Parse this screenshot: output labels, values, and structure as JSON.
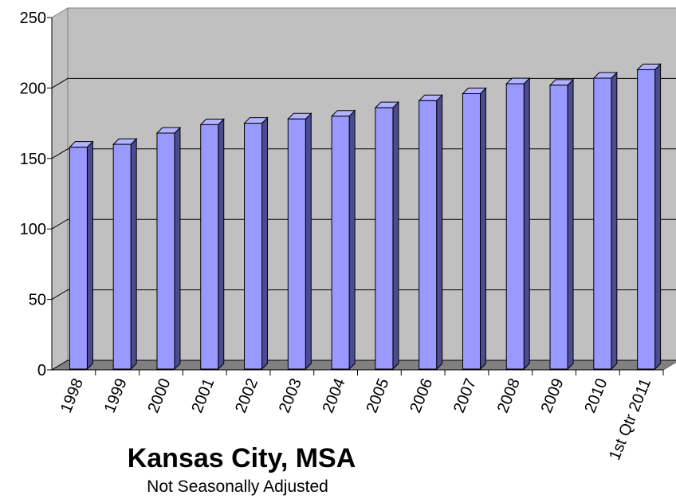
{
  "chart_data": {
    "type": "bar",
    "title": "Kansas City, MSA",
    "subtitle": "Not Seasonally Adjusted",
    "categories": [
      "1998",
      "1999",
      "2000",
      "2001",
      "2002",
      "2003",
      "2004",
      "2005",
      "2006",
      "2007",
      "2008",
      "2009",
      "2010",
      "1st Qtr 2011"
    ],
    "values": [
      158,
      160,
      168,
      174,
      175,
      178,
      180,
      186,
      191,
      196,
      203,
      202,
      207,
      213
    ],
    "color": "#9999ff",
    "ylim": [
      0,
      250
    ],
    "yticks": [
      0,
      50,
      100,
      150,
      200,
      250
    ],
    "grid": true
  }
}
